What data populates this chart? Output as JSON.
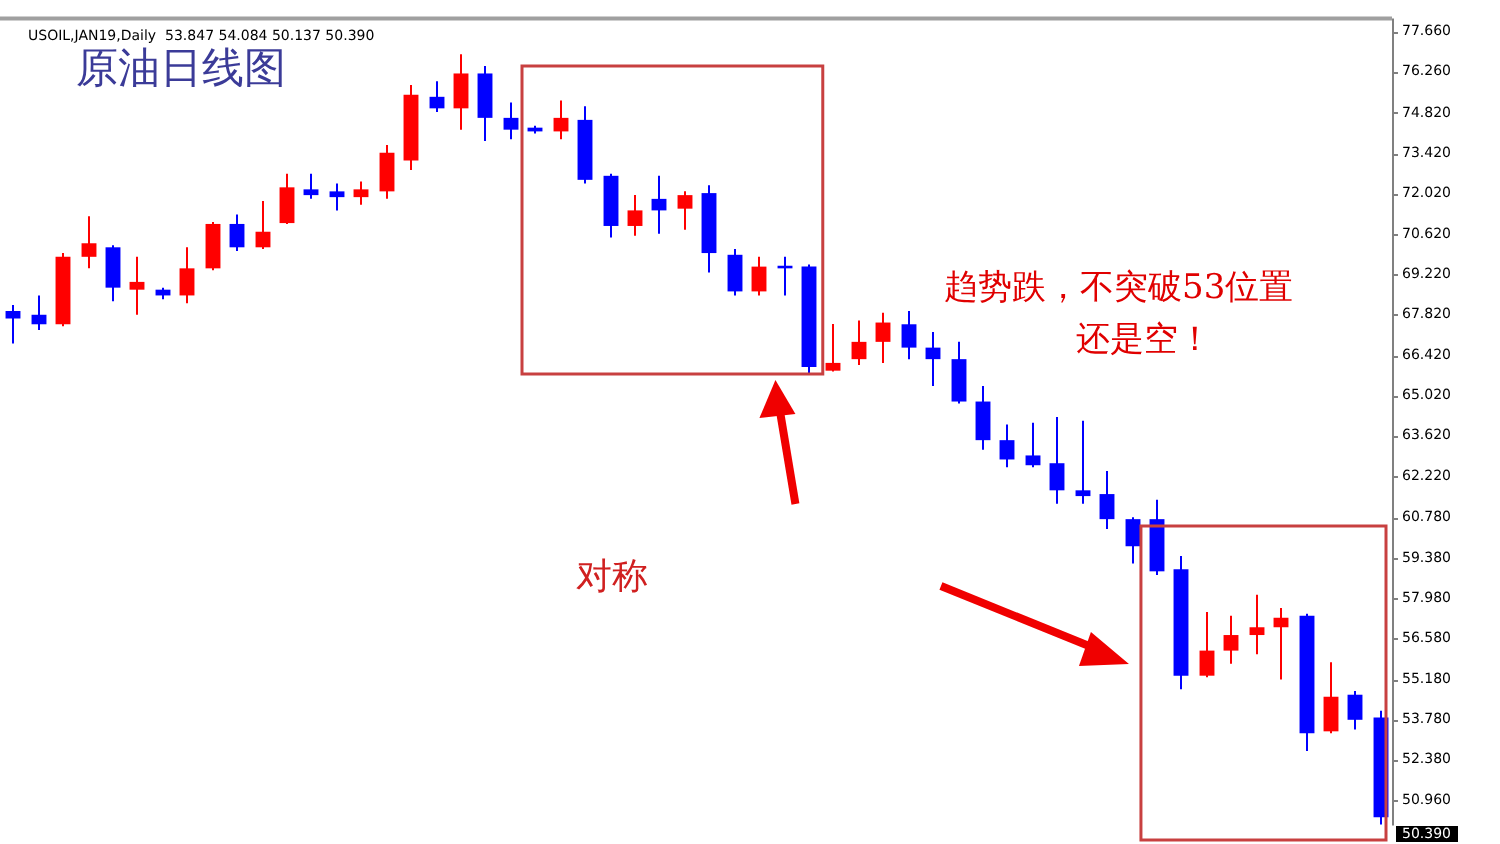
{
  "chart_data": {
    "type": "candlestick",
    "title": "USOIL,JAN19,Daily  53.847 54.084 50.137 50.390",
    "categories": [
      null,
      null,
      null,
      null,
      null,
      null,
      null,
      null,
      null,
      null,
      null,
      null,
      null,
      null,
      null,
      null,
      null,
      null,
      null,
      null,
      null,
      null,
      null,
      null,
      null,
      null,
      null,
      null,
      null,
      null,
      null,
      null,
      null,
      null,
      null,
      null,
      null,
      null,
      null,
      null,
      null,
      null,
      null,
      null,
      null,
      null,
      null,
      null,
      null,
      null,
      null,
      null,
      null,
      null,
      null,
      null
    ],
    "ohlc": [
      [
        67.95,
        68.16,
        66.82,
        67.69
      ],
      [
        67.82,
        68.49,
        67.29,
        67.49
      ],
      [
        67.49,
        69.96,
        67.42,
        69.83
      ],
      [
        69.83,
        71.24,
        69.43,
        70.3
      ],
      [
        70.16,
        70.23,
        68.29,
        68.76
      ],
      [
        68.69,
        69.83,
        67.82,
        68.96
      ],
      [
        68.69,
        68.76,
        68.36,
        68.49
      ],
      [
        68.49,
        70.16,
        68.22,
        69.43
      ],
      [
        69.43,
        71.04,
        69.36,
        70.97
      ],
      [
        70.97,
        71.3,
        70.03,
        70.16
      ],
      [
        70.16,
        71.77,
        70.1,
        70.7
      ],
      [
        71.0,
        72.71,
        70.97,
        72.24
      ],
      [
        72.17,
        72.71,
        71.84,
        71.97
      ],
      [
        72.1,
        72.37,
        71.44,
        71.9
      ],
      [
        71.9,
        72.44,
        71.64,
        72.17
      ],
      [
        72.1,
        73.71,
        71.84,
        73.44
      ],
      [
        73.17,
        75.79,
        72.84,
        75.45
      ],
      [
        75.38,
        75.92,
        74.85,
        74.98
      ],
      [
        74.98,
        76.86,
        74.24,
        76.19
      ],
      [
        76.19,
        76.45,
        73.85,
        74.65
      ],
      [
        74.65,
        75.18,
        73.91,
        74.24
      ],
      [
        74.31,
        74.38,
        74.11,
        74.18
      ],
      [
        74.18,
        75.25,
        73.91,
        74.65
      ],
      [
        74.58,
        75.05,
        72.37,
        72.5
      ],
      [
        72.64,
        72.71,
        70.5,
        70.9
      ],
      [
        70.9,
        71.97,
        70.56,
        71.44
      ],
      [
        71.84,
        72.64,
        70.63,
        71.44
      ],
      [
        71.5,
        72.1,
        70.77,
        71.97
      ],
      [
        72.04,
        72.31,
        69.29,
        69.96
      ],
      [
        69.9,
        70.1,
        68.49,
        68.63
      ],
      [
        68.63,
        69.83,
        68.49,
        69.49
      ],
      [
        69.52,
        69.83,
        68.49,
        69.43
      ],
      [
        69.49,
        69.56,
        65.75,
        66.01
      ],
      [
        65.88,
        67.5,
        65.85,
        66.15
      ],
      [
        66.28,
        67.62,
        66.08,
        66.88
      ],
      [
        66.88,
        67.89,
        66.15,
        67.55
      ],
      [
        67.49,
        67.95,
        66.28,
        66.68
      ],
      [
        66.68,
        67.22,
        65.35,
        66.28
      ],
      [
        66.28,
        66.88,
        64.74,
        64.81
      ],
      [
        64.81,
        65.35,
        63.14,
        63.47
      ],
      [
        63.47,
        64.01,
        62.53,
        62.8
      ],
      [
        62.94,
        64.07,
        62.53,
        62.6
      ],
      [
        62.67,
        64.27,
        61.26,
        61.73
      ],
      [
        61.73,
        64.14,
        61.26,
        61.53
      ],
      [
        61.6,
        62.4,
        60.39,
        60.73
      ],
      [
        60.73,
        60.8,
        59.19,
        59.79
      ],
      [
        60.73,
        61.4,
        58.79,
        58.92
      ],
      [
        58.99,
        59.45,
        54.83,
        55.3
      ],
      [
        55.3,
        57.51,
        55.25,
        56.17
      ],
      [
        56.17,
        57.38,
        55.71,
        56.71
      ],
      [
        56.71,
        58.11,
        56.04,
        56.98
      ],
      [
        56.98,
        57.65,
        55.17,
        57.31
      ],
      [
        57.38,
        57.45,
        52.69,
        53.3
      ],
      [
        53.37,
        55.77,
        53.3,
        54.57
      ],
      [
        54.64,
        54.77,
        53.43,
        53.77
      ],
      [
        53.847,
        54.084,
        50.137,
        50.39
      ]
    ],
    "colors": [
      "#0000ff",
      "#0000ff",
      "#ff0000",
      "#ff0000",
      "#0000ff",
      "#ff0000",
      "#0000ff",
      "#ff0000",
      "#ff0000",
      "#0000ff",
      "#ff0000",
      "#ff0000",
      "#0000ff",
      "#0000ff",
      "#ff0000",
      "#ff0000",
      "#ff0000",
      "#0000ff",
      "#ff0000",
      "#0000ff",
      "#0000ff",
      "#0000ff",
      "#ff0000",
      "#0000ff",
      "#0000ff",
      "#ff0000",
      "#0000ff",
      "#ff0000",
      "#0000ff",
      "#0000ff",
      "#ff0000",
      "#0000ff",
      "#0000ff",
      "#ff0000",
      "#ff0000",
      "#ff0000",
      "#0000ff",
      "#0000ff",
      "#0000ff",
      "#0000ff",
      "#0000ff",
      "#0000ff",
      "#0000ff",
      "#0000ff",
      "#0000ff",
      "#0000ff",
      "#0000ff",
      "#0000ff",
      "#ff0000",
      "#ff0000",
      "#ff0000",
      "#ff0000",
      "#0000ff",
      "#ff0000",
      "#0000ff",
      "#0000ff"
    ],
    "ylim": [
      50.1,
      78.1
    ],
    "yticks": [
      {
        "value": 77.66,
        "label": "77.660"
      },
      {
        "value": 76.26,
        "label": "76.260"
      },
      {
        "value": 74.82,
        "label": "74.820"
      },
      {
        "value": 73.42,
        "label": "73.420"
      },
      {
        "value": 72.02,
        "label": "72.020"
      },
      {
        "value": 70.62,
        "label": "70.620"
      },
      {
        "value": 69.22,
        "label": "69.220"
      },
      {
        "value": 67.82,
        "label": "67.820"
      },
      {
        "value": 66.42,
        "label": "66.420"
      },
      {
        "value": 65.02,
        "label": "65.020"
      },
      {
        "value": 63.62,
        "label": "63.620"
      },
      {
        "value": 62.22,
        "label": "62.220"
      },
      {
        "value": 60.78,
        "label": "60.780"
      },
      {
        "value": 59.38,
        "label": "59.380"
      },
      {
        "value": 57.98,
        "label": "57.980"
      },
      {
        "value": 56.58,
        "label": "56.580"
      },
      {
        "value": 55.18,
        "label": "55.180"
      },
      {
        "value": 53.78,
        "label": "53.780"
      },
      {
        "value": 52.38,
        "label": "52.380"
      },
      {
        "value": 50.96,
        "label": "50.960"
      }
    ],
    "tick_labels": "y",
    "grid": false,
    "legend": false,
    "annotations": [
      "原油日线图",
      "趋势跌，不突破53位置",
      "还是空！",
      "对称",
      "50.390"
    ]
  }
}
